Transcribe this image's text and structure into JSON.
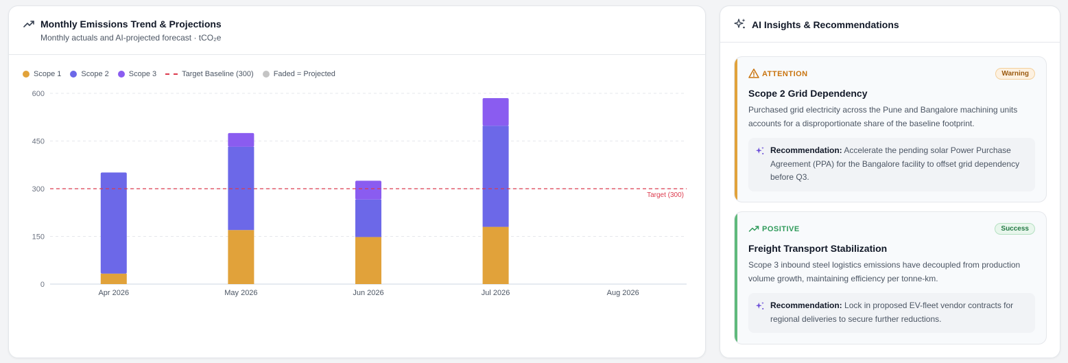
{
  "chart_panel": {
    "title": "Monthly Emissions Trend & Projections",
    "subtitle": "Monthly actuals and AI-projected forecast · tCO₂e",
    "legend": [
      {
        "label": "Scope 1",
        "color": "#e1a23a"
      },
      {
        "label": "Scope 2",
        "color": "#6c68e8"
      },
      {
        "label": "Scope 3",
        "color": "#8a5cf0"
      },
      {
        "label": "Target Baseline (300)",
        "color": "#dc3a4d",
        "style": "dashed"
      },
      {
        "label": "Faded = Projected",
        "color": "#c4c4c4"
      }
    ]
  },
  "chart_data": {
    "type": "bar",
    "stacked": true,
    "categories": [
      "Apr 2026",
      "May 2026",
      "Jun 2026",
      "Jul 2026",
      "Aug 2026"
    ],
    "series": [
      {
        "name": "Scope 1",
        "color": "#e1a23a",
        "values": [
          33,
          170,
          148,
          180,
          null
        ]
      },
      {
        "name": "Scope 2",
        "color": "#6c68e8",
        "values": [
          318,
          262,
          118,
          318,
          null
        ]
      },
      {
        "name": "Scope 3",
        "color": "#8a5cf0",
        "values": [
          0,
          43,
          59,
          87,
          null
        ]
      }
    ],
    "ylim": [
      0,
      600
    ],
    "yticks": [
      "0",
      "150",
      "300",
      "450",
      "600"
    ],
    "target": {
      "value": 300,
      "label": "Target (300)"
    },
    "grid": true,
    "legend_position": "top-left"
  },
  "insights_panel": {
    "title": "AI Insights & Recommendations",
    "items": [
      {
        "kicker": "ATTENTION",
        "badge": "Warning",
        "title": "Scope 2 Grid Dependency",
        "body": "Purchased grid electricity across the Pune and Bangalore machining units accounts for a disproportionate share of the baseline footprint.",
        "rec_label": "Recommendation:",
        "rec_text": "Accelerate the pending solar Power Purchase Agreement (PPA) for the Bangalore facility to offset grid dependency before Q3.",
        "accent": "#e1a23a",
        "kicker_color": "#c9740f",
        "badge_bg": "#fdf1e1",
        "badge_border": "#f3cf9b",
        "badge_color": "#9a5a10",
        "icon": "warning-triangle-icon"
      },
      {
        "kicker": "POSITIVE",
        "badge": "Success",
        "title": "Freight Transport Stabilization",
        "body": "Scope 3 inbound steel logistics emissions have decoupled from production volume growth, maintaining efficiency per tonne-km.",
        "rec_label": "Recommendation:",
        "rec_text": "Lock in proposed EV-fleet vendor contracts for regional deliveries to secure further reductions.",
        "accent": "#5fb97b",
        "kicker_color": "#2f9a5a",
        "badge_bg": "#e8f6ec",
        "badge_border": "#b5e0c2",
        "badge_color": "#257a46",
        "icon": "trend-up-icon"
      }
    ]
  }
}
